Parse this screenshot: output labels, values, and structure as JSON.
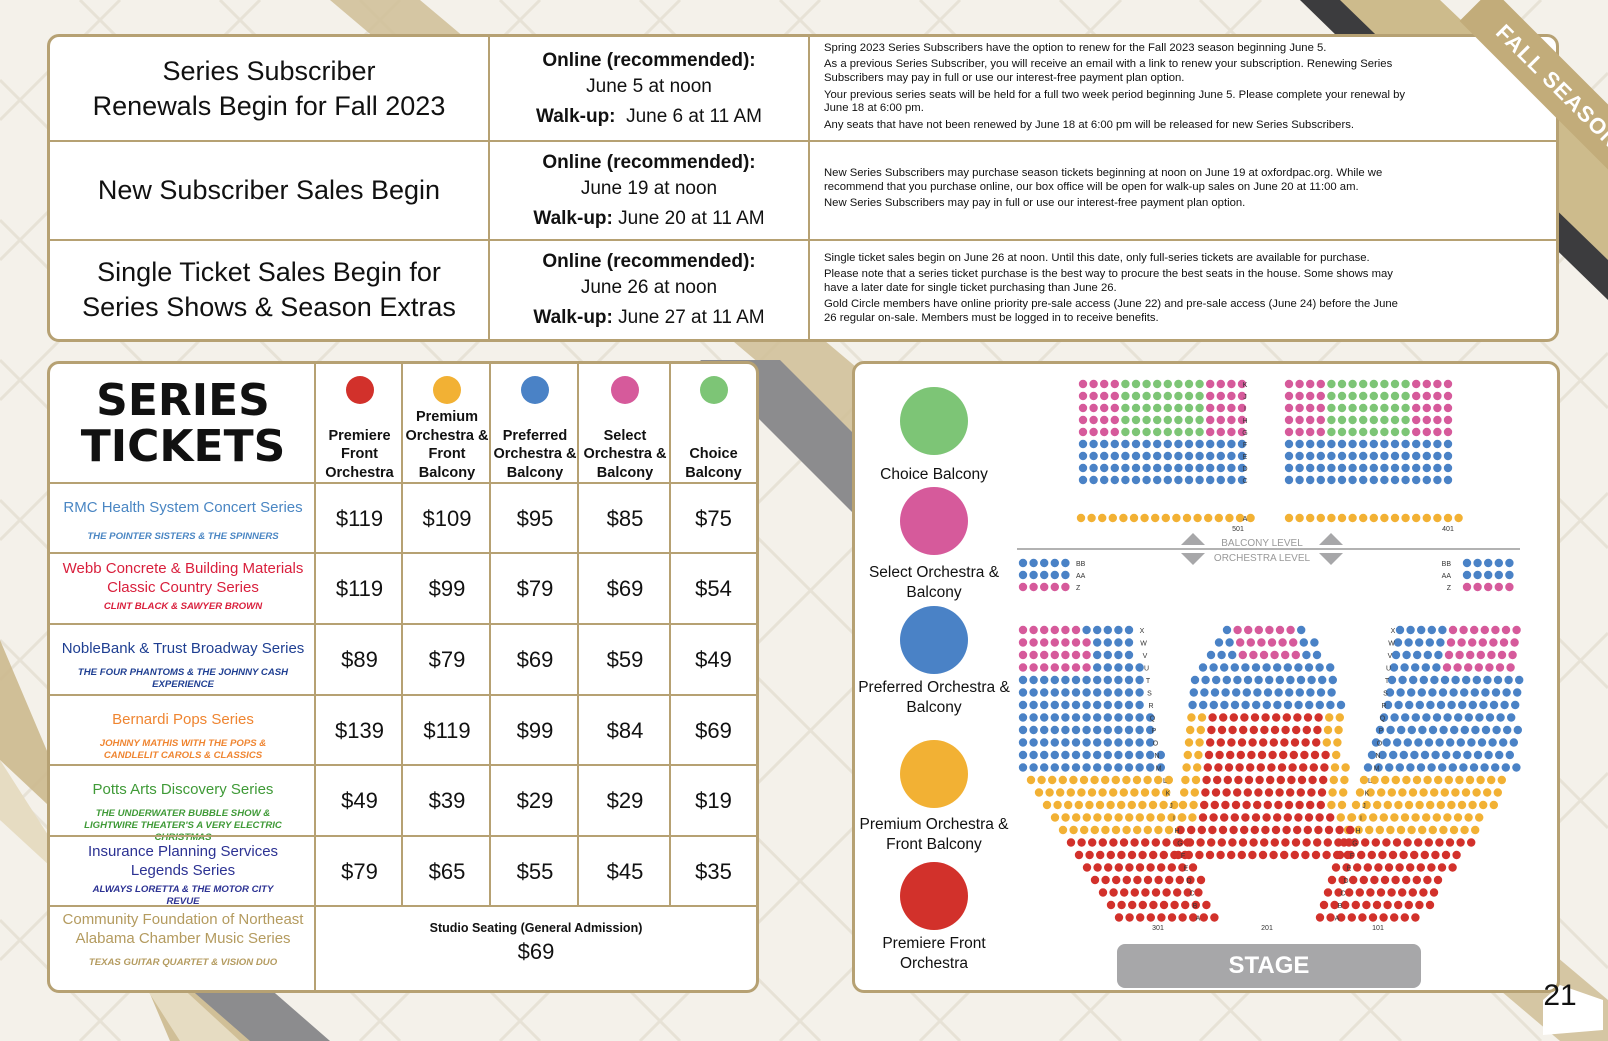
{
  "schedule": [
    {
      "title_l1": "Series Subscriber",
      "title_l2": "Renewals Begin for Fall 2023",
      "online_label": "Online (recommended):",
      "online_date": "June 5 at noon",
      "walkup_label": "Walk-up:",
      "walkup_date": "June 6 at 11 AM",
      "notes": [
        "Spring 2023 Series Subscribers have the option to renew for the Fall 2023 season beginning June 5.",
        "As a previous Series Subscriber, you will receive an email with a link to renew your subscription. Renewing Series Subscribers may pay in full or use our interest-free payment plan option.",
        "Your previous series seats will be held for a full two week period beginning June 5. Please complete your renewal by June 18 at 6:00 pm.",
        "Any seats that have not been renewed by June 18 at 6:00 pm will be released for new Series Subscribers."
      ]
    },
    {
      "title_l1": "New Subscriber Sales Begin",
      "title_l2": "",
      "online_label": "Online (recommended):",
      "online_date": "June 19 at noon",
      "walkup_label": "Walk-up:",
      "walkup_date": "June 20 at 11 AM",
      "notes": [
        "New Series Subscribers may purchase season tickets beginning at noon on June 19 at oxfordpac.org.  While we recommend that you purchase online, our box office will be open for walk-up sales on June 20 at 11:00 am.",
        "New Series Subscribers may pay in full or use our interest-free payment plan option."
      ]
    },
    {
      "title_l1": "Single Ticket Sales Begin for",
      "title_l2": "Series Shows & Season Extras",
      "online_label": "Online (recommended):",
      "online_date": "June 26 at noon",
      "walkup_label": "Walk-up:",
      "walkup_date": "June 27 at 11 AM",
      "notes": [
        "Single ticket sales begin on June 26 at noon. Until this date, only full-series tickets are available for purchase.",
        "Please note that a series ticket purchase is the best way to procure the best seats in the house.  Some shows may have a later date for single ticket purchasing than June 26.",
        "Gold Circle members have online priority pre-sale access (June 22) and pre-sale access (June 24) before the June 26 regular on-sale. Members must be logged in to receive benefits."
      ]
    }
  ],
  "ribbon": "FALL SEASON TICKETS",
  "series_tickets": {
    "title_l1": "SERIES",
    "title_l2": "TICKETS",
    "columns": [
      {
        "label": "Premiere Front Orchestra",
        "color": "#d2312b"
      },
      {
        "label": "Premium Orchestra & Front Balcony",
        "color": "#f2b134"
      },
      {
        "label": "Preferred Orchestra & Balcony",
        "color": "#4a82c6"
      },
      {
        "label": "Select Orchestra & Balcony",
        "color": "#d65a9b"
      },
      {
        "label": "Choice Balcony",
        "color": "#7dc576"
      }
    ],
    "rows": [
      {
        "name": "RMC Health System Concert Series",
        "acts": "THE POINTER SISTERS & THE SPINNERS",
        "color": "#4a86c3",
        "prices": [
          "$119",
          "$109",
          "$95",
          "$85",
          "$75"
        ]
      },
      {
        "name": "Webb Concrete & Building Materials Classic Country Series",
        "acts": "CLINT BLACK & SAWYER BROWN",
        "color": "#d91f3c",
        "prices": [
          "$119",
          "$99",
          "$79",
          "$69",
          "$54"
        ]
      },
      {
        "name": "NobleBank & Trust Broadway Series",
        "acts": "THE FOUR PHANTOMS & THE JOHNNY CASH EXPERIENCE",
        "color": "#1f3f92",
        "prices": [
          "$89",
          "$79",
          "$69",
          "$59",
          "$49"
        ]
      },
      {
        "name": "Bernardi Pops Series",
        "acts": "JOHNNY MATHIS WITH THE POPS & CANDLELIT CAROLS & CLASSICS",
        "color": "#ef8531",
        "prices": [
          "$139",
          "$119",
          "$99",
          "$84",
          "$69"
        ]
      },
      {
        "name": "Potts Arts Discovery Series",
        "acts": "THE UNDERWATER BUBBLE SHOW & LIGHTWIRE THEATER'S A VERY ELECTRIC CHRISTMAS",
        "color": "#3f9a37",
        "prices": [
          "$49",
          "$39",
          "$29",
          "$29",
          "$19"
        ]
      },
      {
        "name": "Insurance Planning Services Legends Series",
        "acts": "ALWAYS LORETTA & THE MOTOR CITY REVUE",
        "color": "#2c3293",
        "prices": [
          "$79",
          "$65",
          "$55",
          "$45",
          "$35"
        ]
      }
    ],
    "studio_row": {
      "name": "Community Foundation of Northeast Alabama Chamber Music Series",
      "acts": "TEXAS GUITAR QUARTET & VISION DUO",
      "color": "#b49b5f",
      "label": "Studio Seating (General Admission)",
      "price": "$69"
    }
  },
  "seating": {
    "legend": [
      {
        "label": "Choice Balcony",
        "color": "#7dc576"
      },
      {
        "label": "Select Orchestra & Balcony",
        "color": "#d65a9b"
      },
      {
        "label": "Preferred Orchestra & Balcony",
        "color": "#4a82c6"
      },
      {
        "label": "Premium Orchestra & Front Balcony",
        "color": "#f2b134"
      },
      {
        "label": "Premiere Front Orchestra",
        "color": "#d2312b"
      }
    ],
    "balcony_level": "BALCONY LEVEL",
    "orchestra_level": "ORCHESTRA LEVEL",
    "stage": "STAGE",
    "balcony_rows": [
      "K",
      "J",
      "I",
      "H",
      "G",
      "F",
      "E",
      "D",
      "C",
      "A"
    ],
    "box_rows": [
      "BB",
      "AA",
      "Z"
    ],
    "orch_rows": [
      "X",
      "W",
      "V",
      "U",
      "T",
      "S",
      "R",
      "Q",
      "P",
      "O",
      "N",
      "M",
      "L",
      "K",
      "J",
      "I",
      "H",
      "G",
      "F",
      "E",
      "D",
      "C",
      "B",
      "A"
    ],
    "seat_numbers": [
      "501",
      "401",
      "301",
      "201",
      "101"
    ]
  },
  "page_number": "21"
}
